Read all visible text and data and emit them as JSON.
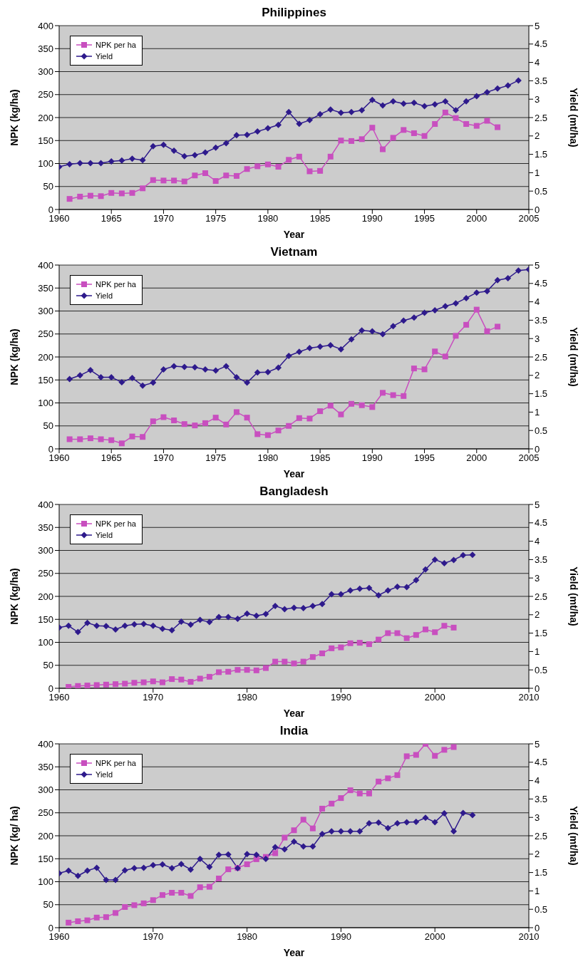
{
  "chart_data": [
    {
      "type": "line",
      "title": "Philippines",
      "xlabel": "Year",
      "ylabel": "NPK (kg/ha)",
      "y2label": "Yield (mt/ha)",
      "xlim": [
        1960,
        2005
      ],
      "xticks": [
        1960,
        1965,
        1970,
        1975,
        1980,
        1985,
        1990,
        1995,
        2000,
        2005
      ],
      "ylim": [
        0,
        400
      ],
      "yticks": [
        0,
        50,
        100,
        150,
        200,
        250,
        300,
        350,
        400
      ],
      "y2lim": [
        0,
        5
      ],
      "y2ticks": [
        0,
        0.5,
        1,
        1.5,
        2,
        2.5,
        3,
        3.5,
        4,
        4.5,
        5
      ],
      "grid": "y",
      "legend": "top left",
      "line_style": "solid",
      "series": [
        {
          "name": "NPK per ha",
          "color": "#c84fbf",
          "marker": "square",
          "x": [
            1961,
            1962,
            1963,
            1964,
            1965,
            1966,
            1967,
            1968,
            1969,
            1970,
            1971,
            1972,
            1973,
            1974,
            1975,
            1976,
            1977,
            1978,
            1979,
            1980,
            1981,
            1982,
            1983,
            1984,
            1985,
            1986,
            1987,
            1988,
            1989,
            1990,
            1991,
            1992,
            1993,
            1994,
            1995,
            1996,
            1997,
            1998,
            1999,
            2000,
            2001,
            2002
          ],
          "values": [
            23,
            28,
            30,
            29,
            36,
            35,
            36,
            46,
            64,
            63,
            63,
            61,
            74,
            79,
            62,
            74,
            73,
            88,
            94,
            98,
            93,
            108,
            115,
            83,
            84,
            115,
            150,
            149,
            153,
            178,
            131,
            156,
            173,
            166,
            160,
            186,
            211,
            199,
            186,
            182,
            193,
            179
          ]
        },
        {
          "name": "Yield",
          "color": "#2e1a8c",
          "marker": "diamond",
          "axis": "y2",
          "x": [
            1960,
            1961,
            1962,
            1963,
            1964,
            1965,
            1966,
            1967,
            1968,
            1969,
            1970,
            1971,
            1972,
            1973,
            1974,
            1975,
            1976,
            1977,
            1978,
            1979,
            1980,
            1981,
            1982,
            1983,
            1984,
            1985,
            1986,
            1987,
            1988,
            1989,
            1990,
            1991,
            1992,
            1993,
            1994,
            1995,
            1996,
            1997,
            1998,
            1999,
            2000,
            2001,
            2002,
            2003,
            2004
          ],
          "values": [
            1.16,
            1.23,
            1.26,
            1.26,
            1.26,
            1.31,
            1.33,
            1.38,
            1.34,
            1.72,
            1.76,
            1.6,
            1.45,
            1.48,
            1.55,
            1.68,
            1.8,
            2.02,
            2.03,
            2.12,
            2.21,
            2.3,
            2.65,
            2.33,
            2.43,
            2.59,
            2.72,
            2.63,
            2.65,
            2.7,
            2.98,
            2.83,
            2.94,
            2.88,
            2.9,
            2.81,
            2.86,
            2.94,
            2.7,
            2.94,
            3.08,
            3.19,
            3.29,
            3.37,
            3.51
          ]
        }
      ]
    },
    {
      "type": "line",
      "title": "Vietnam",
      "xlabel": "Year",
      "ylabel": "NPK (kg/ha)",
      "y2label": "Yield (mt/ha)",
      "xlim": [
        1960,
        2005
      ],
      "xticks": [
        1960,
        1965,
        1970,
        1975,
        1980,
        1985,
        1990,
        1995,
        2000,
        2005
      ],
      "ylim": [
        0,
        400
      ],
      "yticks": [
        0,
        50,
        100,
        150,
        200,
        250,
        300,
        350,
        400
      ],
      "y2lim": [
        0,
        5
      ],
      "y2ticks": [
        0,
        0.5,
        1,
        1.5,
        2,
        2.5,
        3,
        3.5,
        4,
        4.5,
        5
      ],
      "grid": "y",
      "legend": "top left",
      "line_style": "solid",
      "series": [
        {
          "name": "NPK per ha",
          "color": "#c84fbf",
          "marker": "square",
          "x": [
            1961,
            1962,
            1963,
            1964,
            1965,
            1966,
            1967,
            1968,
            1969,
            1970,
            1971,
            1972,
            1973,
            1974,
            1975,
            1976,
            1977,
            1978,
            1979,
            1980,
            1981,
            1982,
            1983,
            1984,
            1985,
            1986,
            1987,
            1988,
            1989,
            1990,
            1991,
            1992,
            1993,
            1994,
            1995,
            1996,
            1997,
            1998,
            1999,
            2000,
            2001,
            2002
          ],
          "values": [
            21,
            21,
            23,
            21,
            19,
            12,
            27,
            26,
            60,
            69,
            62,
            54,
            51,
            56,
            68,
            53,
            80,
            68,
            32,
            30,
            40,
            50,
            67,
            66,
            82,
            94,
            75,
            98,
            95,
            91,
            122,
            117,
            115,
            175,
            173,
            212,
            201,
            246,
            270,
            303,
            256,
            266
          ]
        },
        {
          "name": "Yield",
          "color": "#2e1a8c",
          "marker": "diamond",
          "axis": "y2",
          "x": [
            1961,
            1962,
            1963,
            1964,
            1965,
            1966,
            1967,
            1968,
            1969,
            1970,
            1971,
            1972,
            1973,
            1974,
            1975,
            1976,
            1977,
            1978,
            1979,
            1980,
            1981,
            1982,
            1983,
            1984,
            1985,
            1986,
            1987,
            1988,
            1989,
            1990,
            1991,
            1992,
            1993,
            1994,
            1995,
            1996,
            1997,
            1998,
            1999,
            2000,
            2001,
            2002,
            2003,
            2004,
            2005
          ],
          "values": [
            1.9,
            2.0,
            2.14,
            1.95,
            1.95,
            1.81,
            1.93,
            1.72,
            1.8,
            2.16,
            2.25,
            2.23,
            2.22,
            2.16,
            2.13,
            2.25,
            1.95,
            1.8,
            2.08,
            2.09,
            2.21,
            2.53,
            2.64,
            2.74,
            2.78,
            2.82,
            2.71,
            2.98,
            3.22,
            3.2,
            3.12,
            3.34,
            3.49,
            3.57,
            3.7,
            3.77,
            3.88,
            3.96,
            4.1,
            4.25,
            4.29,
            4.59,
            4.64,
            4.85,
            4.88
          ]
        }
      ]
    },
    {
      "type": "line",
      "title": "Bangladesh",
      "xlabel": "Year",
      "ylabel": "NPK (kg/ha)",
      "y2label": "Yield (mt/ha)",
      "xlim": [
        1960,
        2010
      ],
      "xticks": [
        1960,
        1970,
        1980,
        1990,
        2000,
        2010
      ],
      "ylim": [
        0,
        400
      ],
      "yticks": [
        0,
        50,
        100,
        150,
        200,
        250,
        300,
        350,
        400
      ],
      "y2lim": [
        0,
        5
      ],
      "y2ticks": [
        0,
        0.5,
        1,
        1.5,
        2,
        2.5,
        3,
        3.5,
        4,
        4.5,
        5
      ],
      "grid": "y",
      "legend": "top left",
      "line_style": "solid",
      "series": [
        {
          "name": "NPK per ha",
          "color": "#c84fbf",
          "marker": "square",
          "x": [
            1961,
            1962,
            1963,
            1964,
            1965,
            1966,
            1967,
            1968,
            1969,
            1970,
            1971,
            1972,
            1973,
            1974,
            1975,
            1976,
            1977,
            1978,
            1979,
            1980,
            1981,
            1982,
            1983,
            1984,
            1985,
            1986,
            1987,
            1988,
            1989,
            1990,
            1991,
            1992,
            1993,
            1994,
            1995,
            1996,
            1997,
            1998,
            1999,
            2000,
            2001,
            2002
          ],
          "values": [
            3,
            5,
            6,
            7,
            8,
            9,
            10,
            12,
            13,
            15,
            13,
            20,
            19,
            14,
            21,
            25,
            35,
            36,
            40,
            40,
            39,
            44,
            58,
            58,
            54,
            58,
            68,
            76,
            87,
            89,
            98,
            99,
            96,
            106,
            120,
            120,
            109,
            116,
            128,
            122,
            136,
            132
          ]
        },
        {
          "name": "Yield",
          "color": "#2e1a8c",
          "marker": "diamond",
          "axis": "y2",
          "x": [
            1960,
            1961,
            1962,
            1963,
            1964,
            1965,
            1966,
            1967,
            1968,
            1969,
            1970,
            1971,
            1972,
            1973,
            1974,
            1975,
            1976,
            1977,
            1978,
            1979,
            1980,
            1981,
            1982,
            1983,
            1984,
            1985,
            1986,
            1987,
            1988,
            1989,
            1990,
            1991,
            1992,
            1993,
            1994,
            1995,
            1996,
            1997,
            1998,
            1999,
            2000,
            2001,
            2002,
            2003,
            2004
          ],
          "values": [
            1.65,
            1.7,
            1.53,
            1.78,
            1.7,
            1.69,
            1.6,
            1.7,
            1.74,
            1.75,
            1.7,
            1.62,
            1.58,
            1.81,
            1.73,
            1.86,
            1.8,
            1.94,
            1.94,
            1.89,
            2.03,
            1.97,
            2.02,
            2.24,
            2.15,
            2.19,
            2.18,
            2.24,
            2.29,
            2.56,
            2.56,
            2.66,
            2.71,
            2.73,
            2.53,
            2.66,
            2.76,
            2.75,
            2.94,
            3.23,
            3.5,
            3.4,
            3.49,
            3.62,
            3.63
          ]
        }
      ]
    },
    {
      "type": "line",
      "title": "India",
      "xlabel": "Year",
      "ylabel": "NPK (kg/ ha)",
      "y2label": "Yield (mt/ha)",
      "xlim": [
        1960,
        2010
      ],
      "xticks": [
        1960,
        1970,
        1980,
        1990,
        2000,
        2010
      ],
      "ylim": [
        0,
        400
      ],
      "yticks": [
        0,
        50,
        100,
        150,
        200,
        250,
        300,
        350,
        400
      ],
      "y2lim": [
        0,
        5
      ],
      "y2ticks": [
        0,
        0.5,
        1,
        1.5,
        2,
        2.5,
        3,
        3.5,
        4,
        4.5,
        5
      ],
      "grid": "y",
      "legend": "top left",
      "line_style": "solid",
      "series": [
        {
          "name": "NPK per ha",
          "color": "#c84fbf",
          "marker": "square",
          "x": [
            1961,
            1962,
            1963,
            1964,
            1965,
            1966,
            1967,
            1968,
            1969,
            1970,
            1971,
            1972,
            1973,
            1974,
            1975,
            1976,
            1977,
            1978,
            1979,
            1980,
            1981,
            1982,
            1983,
            1984,
            1985,
            1986,
            1987,
            1988,
            1989,
            1990,
            1991,
            1992,
            1993,
            1994,
            1995,
            1996,
            1997,
            1998,
            1999,
            2000,
            2001,
            2002
          ],
          "values": [
            11,
            14,
            16,
            22,
            23,
            32,
            45,
            49,
            53,
            60,
            71,
            76,
            76,
            69,
            88,
            89,
            107,
            127,
            130,
            138,
            149,
            154,
            162,
            196,
            212,
            235,
            216,
            259,
            270,
            282,
            299,
            292,
            292,
            318,
            325,
            332,
            373,
            376,
            400,
            374,
            387,
            393
          ]
        },
        {
          "name": "Yield",
          "color": "#2e1a8c",
          "marker": "diamond",
          "axis": "y2",
          "x": [
            1960,
            1961,
            1962,
            1963,
            1964,
            1965,
            1966,
            1967,
            1968,
            1969,
            1970,
            1971,
            1972,
            1973,
            1974,
            1975,
            1976,
            1977,
            1978,
            1979,
            1980,
            1981,
            1982,
            1983,
            1984,
            1985,
            1986,
            1987,
            1988,
            1989,
            1990,
            1991,
            1992,
            1993,
            1994,
            1995,
            1996,
            1997,
            1998,
            1999,
            2000,
            2001,
            2002,
            2003,
            2004
          ],
          "values": [
            1.48,
            1.55,
            1.41,
            1.55,
            1.63,
            1.3,
            1.3,
            1.56,
            1.62,
            1.63,
            1.7,
            1.72,
            1.62,
            1.73,
            1.58,
            1.87,
            1.65,
            1.98,
            1.99,
            1.62,
            2.0,
            1.98,
            1.87,
            2.19,
            2.13,
            2.34,
            2.21,
            2.21,
            2.55,
            2.62,
            2.62,
            2.62,
            2.62,
            2.84,
            2.86,
            2.71,
            2.84,
            2.87,
            2.88,
            2.99,
            2.87,
            3.11,
            2.62,
            3.12,
            3.06
          ]
        }
      ]
    }
  ]
}
